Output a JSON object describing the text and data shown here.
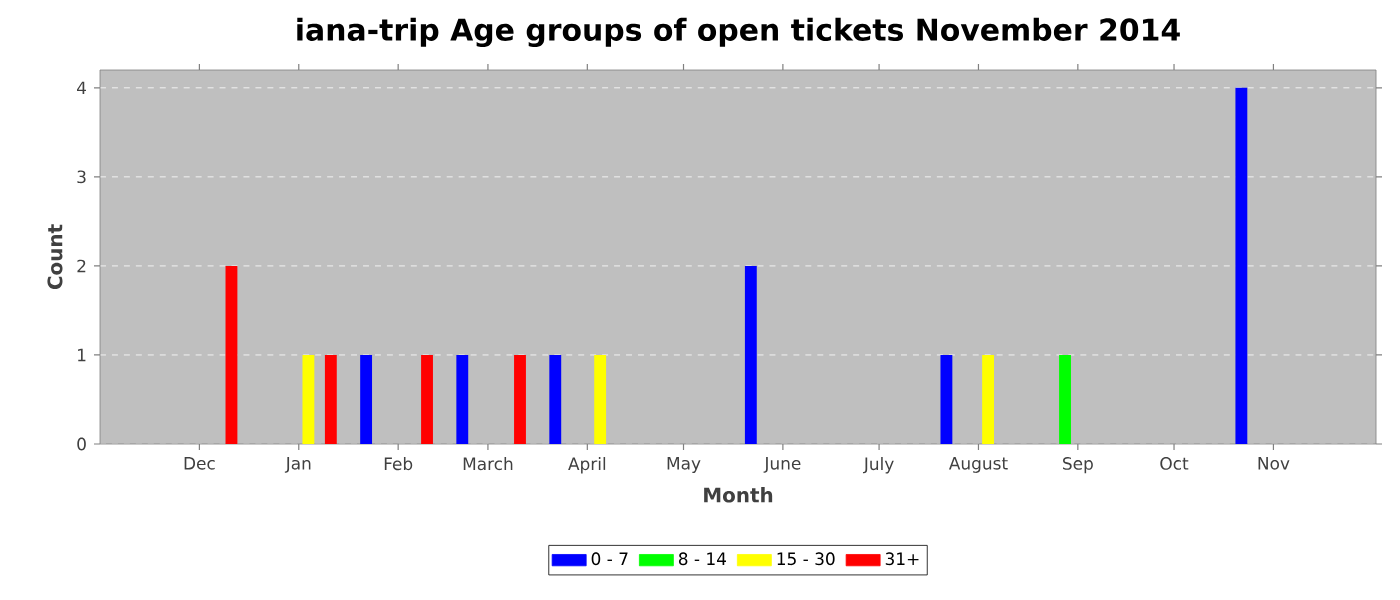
{
  "chart_data": {
    "type": "bar",
    "title": "iana-trip Age groups of open tickets November 2014",
    "xlabel": "Month",
    "ylabel": "Count",
    "xlim": [
      "2013-10-31",
      "2014-12-03"
    ],
    "xticks": [
      {
        "value": "2013-12-01",
        "label": "Dec"
      },
      {
        "value": "2014-01-01",
        "label": "Jan"
      },
      {
        "value": "2014-02-01",
        "label": "Feb"
      },
      {
        "value": "2014-03-01",
        "label": "March"
      },
      {
        "value": "2014-04-01",
        "label": "April"
      },
      {
        "value": "2014-05-01",
        "label": "May"
      },
      {
        "value": "2014-06-01",
        "label": "June"
      },
      {
        "value": "2014-07-01",
        "label": "July"
      },
      {
        "value": "2014-08-01",
        "label": "August"
      },
      {
        "value": "2014-09-01",
        "label": "Sep"
      },
      {
        "value": "2014-10-01",
        "label": "Oct"
      },
      {
        "value": "2014-11-01",
        "label": "Nov"
      }
    ],
    "ylim": [
      0,
      4.2
    ],
    "yticks": [
      0,
      1,
      2,
      3,
      4
    ],
    "grid": "y",
    "legend": "bottom",
    "series": [
      {
        "name": "0 - 7",
        "color": "#0000ff",
        "x": [
          "2014-01-22",
          "2014-02-21",
          "2014-03-22",
          "2014-05-22",
          "2014-07-22",
          "2014-10-22"
        ],
        "values": [
          1,
          1,
          1,
          2,
          1,
          4
        ]
      },
      {
        "name": "8 - 14",
        "color": "#00ff00",
        "x": [
          "2014-08-28"
        ],
        "values": [
          1
        ]
      },
      {
        "name": "15 - 30",
        "color": "#ffff00",
        "x": [
          "2014-01-04",
          "2014-04-05",
          "2014-08-04"
        ],
        "values": [
          1,
          1,
          1
        ]
      },
      {
        "name": "31+",
        "color": "#ff0000",
        "x": [
          "2013-12-11",
          "2014-01-11",
          "2014-02-10",
          "2014-03-11"
        ],
        "values": [
          2,
          1,
          1,
          1
        ]
      }
    ]
  }
}
